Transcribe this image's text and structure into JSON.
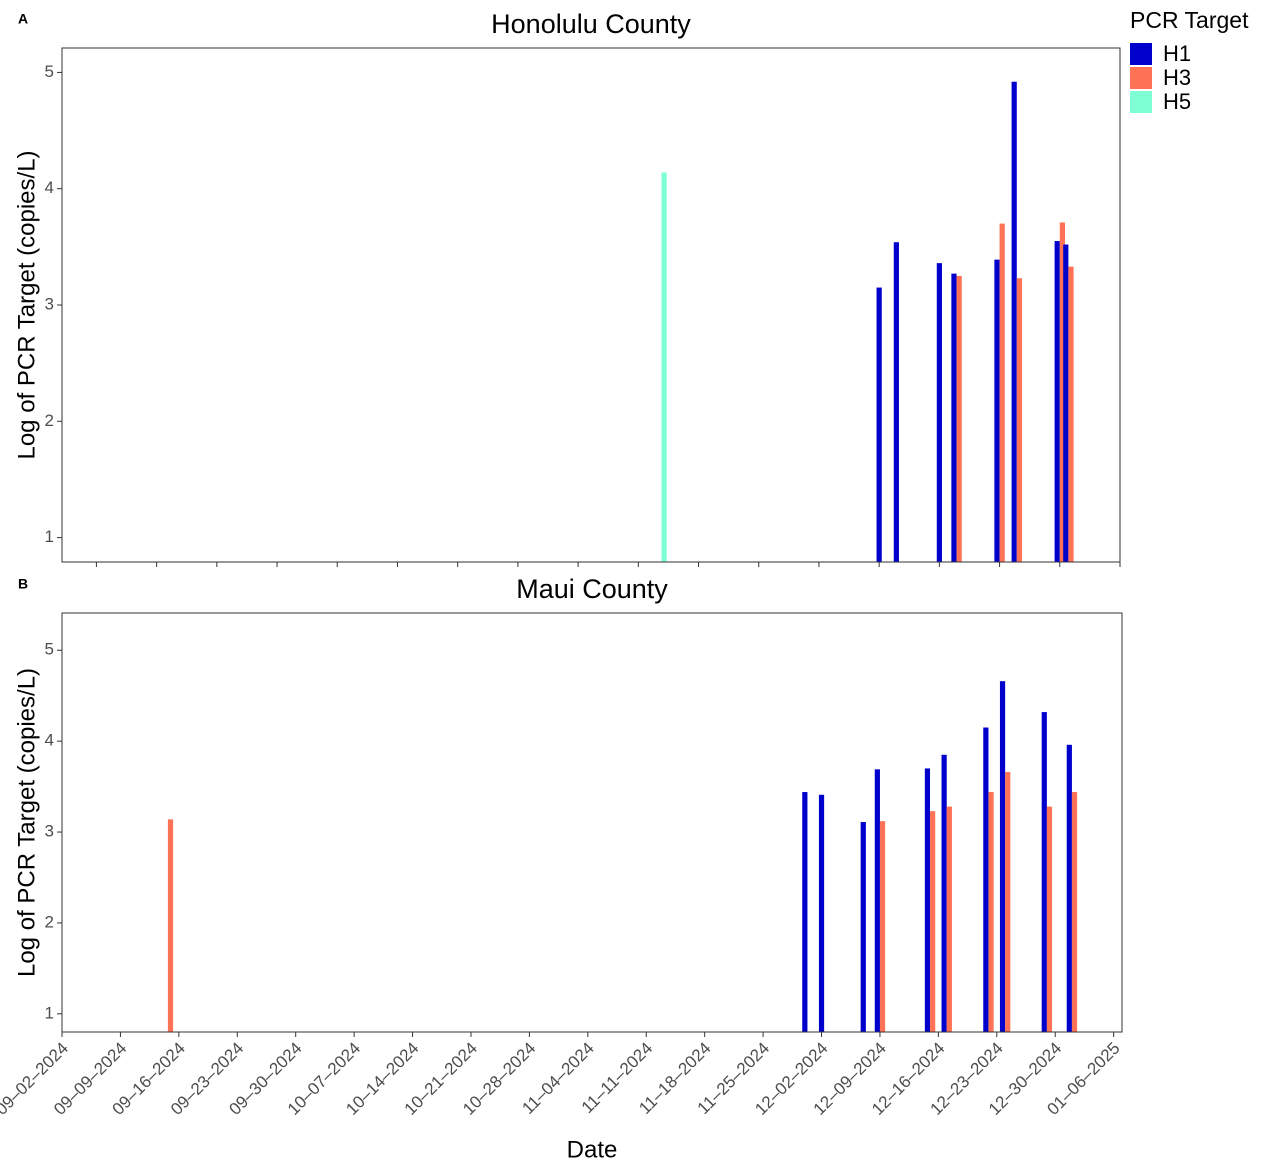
{
  "chart_data": [
    {
      "type": "bar",
      "panel_label": "A",
      "title": "Honolulu County",
      "y_label": "Log of PCR Target (copies/L)",
      "legend_title": "PCR Target",
      "legend": "right",
      "x": [
        "2024-11-14",
        "2024-12-09",
        "2024-12-11",
        "2024-12-16",
        "2024-12-18",
        "2024-12-23",
        "2024-12-25",
        "2024-12-30",
        "2024-12-31"
      ],
      "series": [
        {
          "name": "H1",
          "color": "#0000cd",
          "values": [
            null,
            3.15,
            3.54,
            3.36,
            3.27,
            3.39,
            4.92,
            3.55,
            3.52
          ]
        },
        {
          "name": "H3",
          "color": "#ff7256",
          "values": [
            null,
            null,
            null,
            null,
            3.25,
            3.7,
            3.23,
            3.71,
            3.33
          ]
        },
        {
          "name": "H5",
          "color": "#7fffd4",
          "values": [
            4.14,
            null,
            null,
            null,
            null,
            null,
            null,
            null,
            null
          ]
        }
      ],
      "xlim": [
        "2024-09-05",
        "2025-01-06"
      ],
      "xticks": [
        "2024-09-09",
        "2024-09-16",
        "2024-09-23",
        "2024-09-30",
        "2024-10-07",
        "2024-10-14",
        "2024-10-21",
        "2024-10-28",
        "2024-11-04",
        "2024-11-11",
        "2024-11-18",
        "2024-11-25",
        "2024-12-02",
        "2024-12-09",
        "2024-12-16",
        "2024-12-23",
        "2024-12-30",
        "2025-01-06"
      ],
      "ylim": [
        0.79,
        5.21
      ],
      "yticks": [
        1,
        2,
        3,
        4,
        5
      ]
    },
    {
      "type": "bar",
      "panel_label": "B",
      "title": "Maui County",
      "y_label": "Log of PCR Target (copies/L)",
      "x_label": "Date",
      "x": [
        "2024-09-15",
        "2024-11-30",
        "2024-12-02",
        "2024-12-07",
        "2024-12-09",
        "2024-12-15",
        "2024-12-17",
        "2024-12-22",
        "2024-12-24",
        "2024-12-29",
        "2025-01-01"
      ],
      "series": [
        {
          "color": "#0000cd",
          "values": [
            null,
            3.44,
            3.41,
            3.11,
            3.69,
            3.7,
            3.85,
            4.15,
            4.66,
            4.32,
            3.96
          ]
        },
        {
          "color": "#ff7256",
          "values": [
            3.14,
            null,
            null,
            null,
            3.12,
            3.23,
            3.28,
            3.44,
            3.66,
            3.28,
            3.44
          ]
        }
      ],
      "xlim": [
        "2024-09-02",
        "2025-01-07"
      ],
      "xticks": [
        {
          "value": "2024-09-02",
          "label": "09–02–2024"
        },
        {
          "value": "2024-09-09",
          "label": "09–09–2024"
        },
        {
          "value": "2024-09-16",
          "label": "09–16–2024"
        },
        {
          "value": "2024-09-23",
          "label": "09–23–2024"
        },
        {
          "value": "2024-09-30",
          "label": "09–30–2024"
        },
        {
          "value": "2024-10-07",
          "label": "10–07–2024"
        },
        {
          "value": "2024-10-14",
          "label": "10–14–2024"
        },
        {
          "value": "2024-10-21",
          "label": "10–21–2024"
        },
        {
          "value": "2024-10-28",
          "label": "10–28–2024"
        },
        {
          "value": "2024-11-04",
          "label": "11–04–2024"
        },
        {
          "value": "2024-11-11",
          "label": "11–11–2024"
        },
        {
          "value": "2024-11-18",
          "label": "11–18–2024"
        },
        {
          "value": "2024-11-25",
          "label": "11–25–2024"
        },
        {
          "value": "2024-12-02",
          "label": "12–02–2024"
        },
        {
          "value": "2024-12-09",
          "label": "12–09–2024"
        },
        {
          "value": "2024-12-16",
          "label": "12–16–2024"
        },
        {
          "value": "2024-12-23",
          "label": "12–23–2024"
        },
        {
          "value": "2024-12-30",
          "label": "12–30–2024"
        },
        {
          "value": "2025-01-06",
          "label": "01–06–2025"
        }
      ],
      "ylim": [
        0.8,
        5.41
      ],
      "yticks": [
        1,
        2,
        3,
        4,
        5
      ]
    }
  ]
}
